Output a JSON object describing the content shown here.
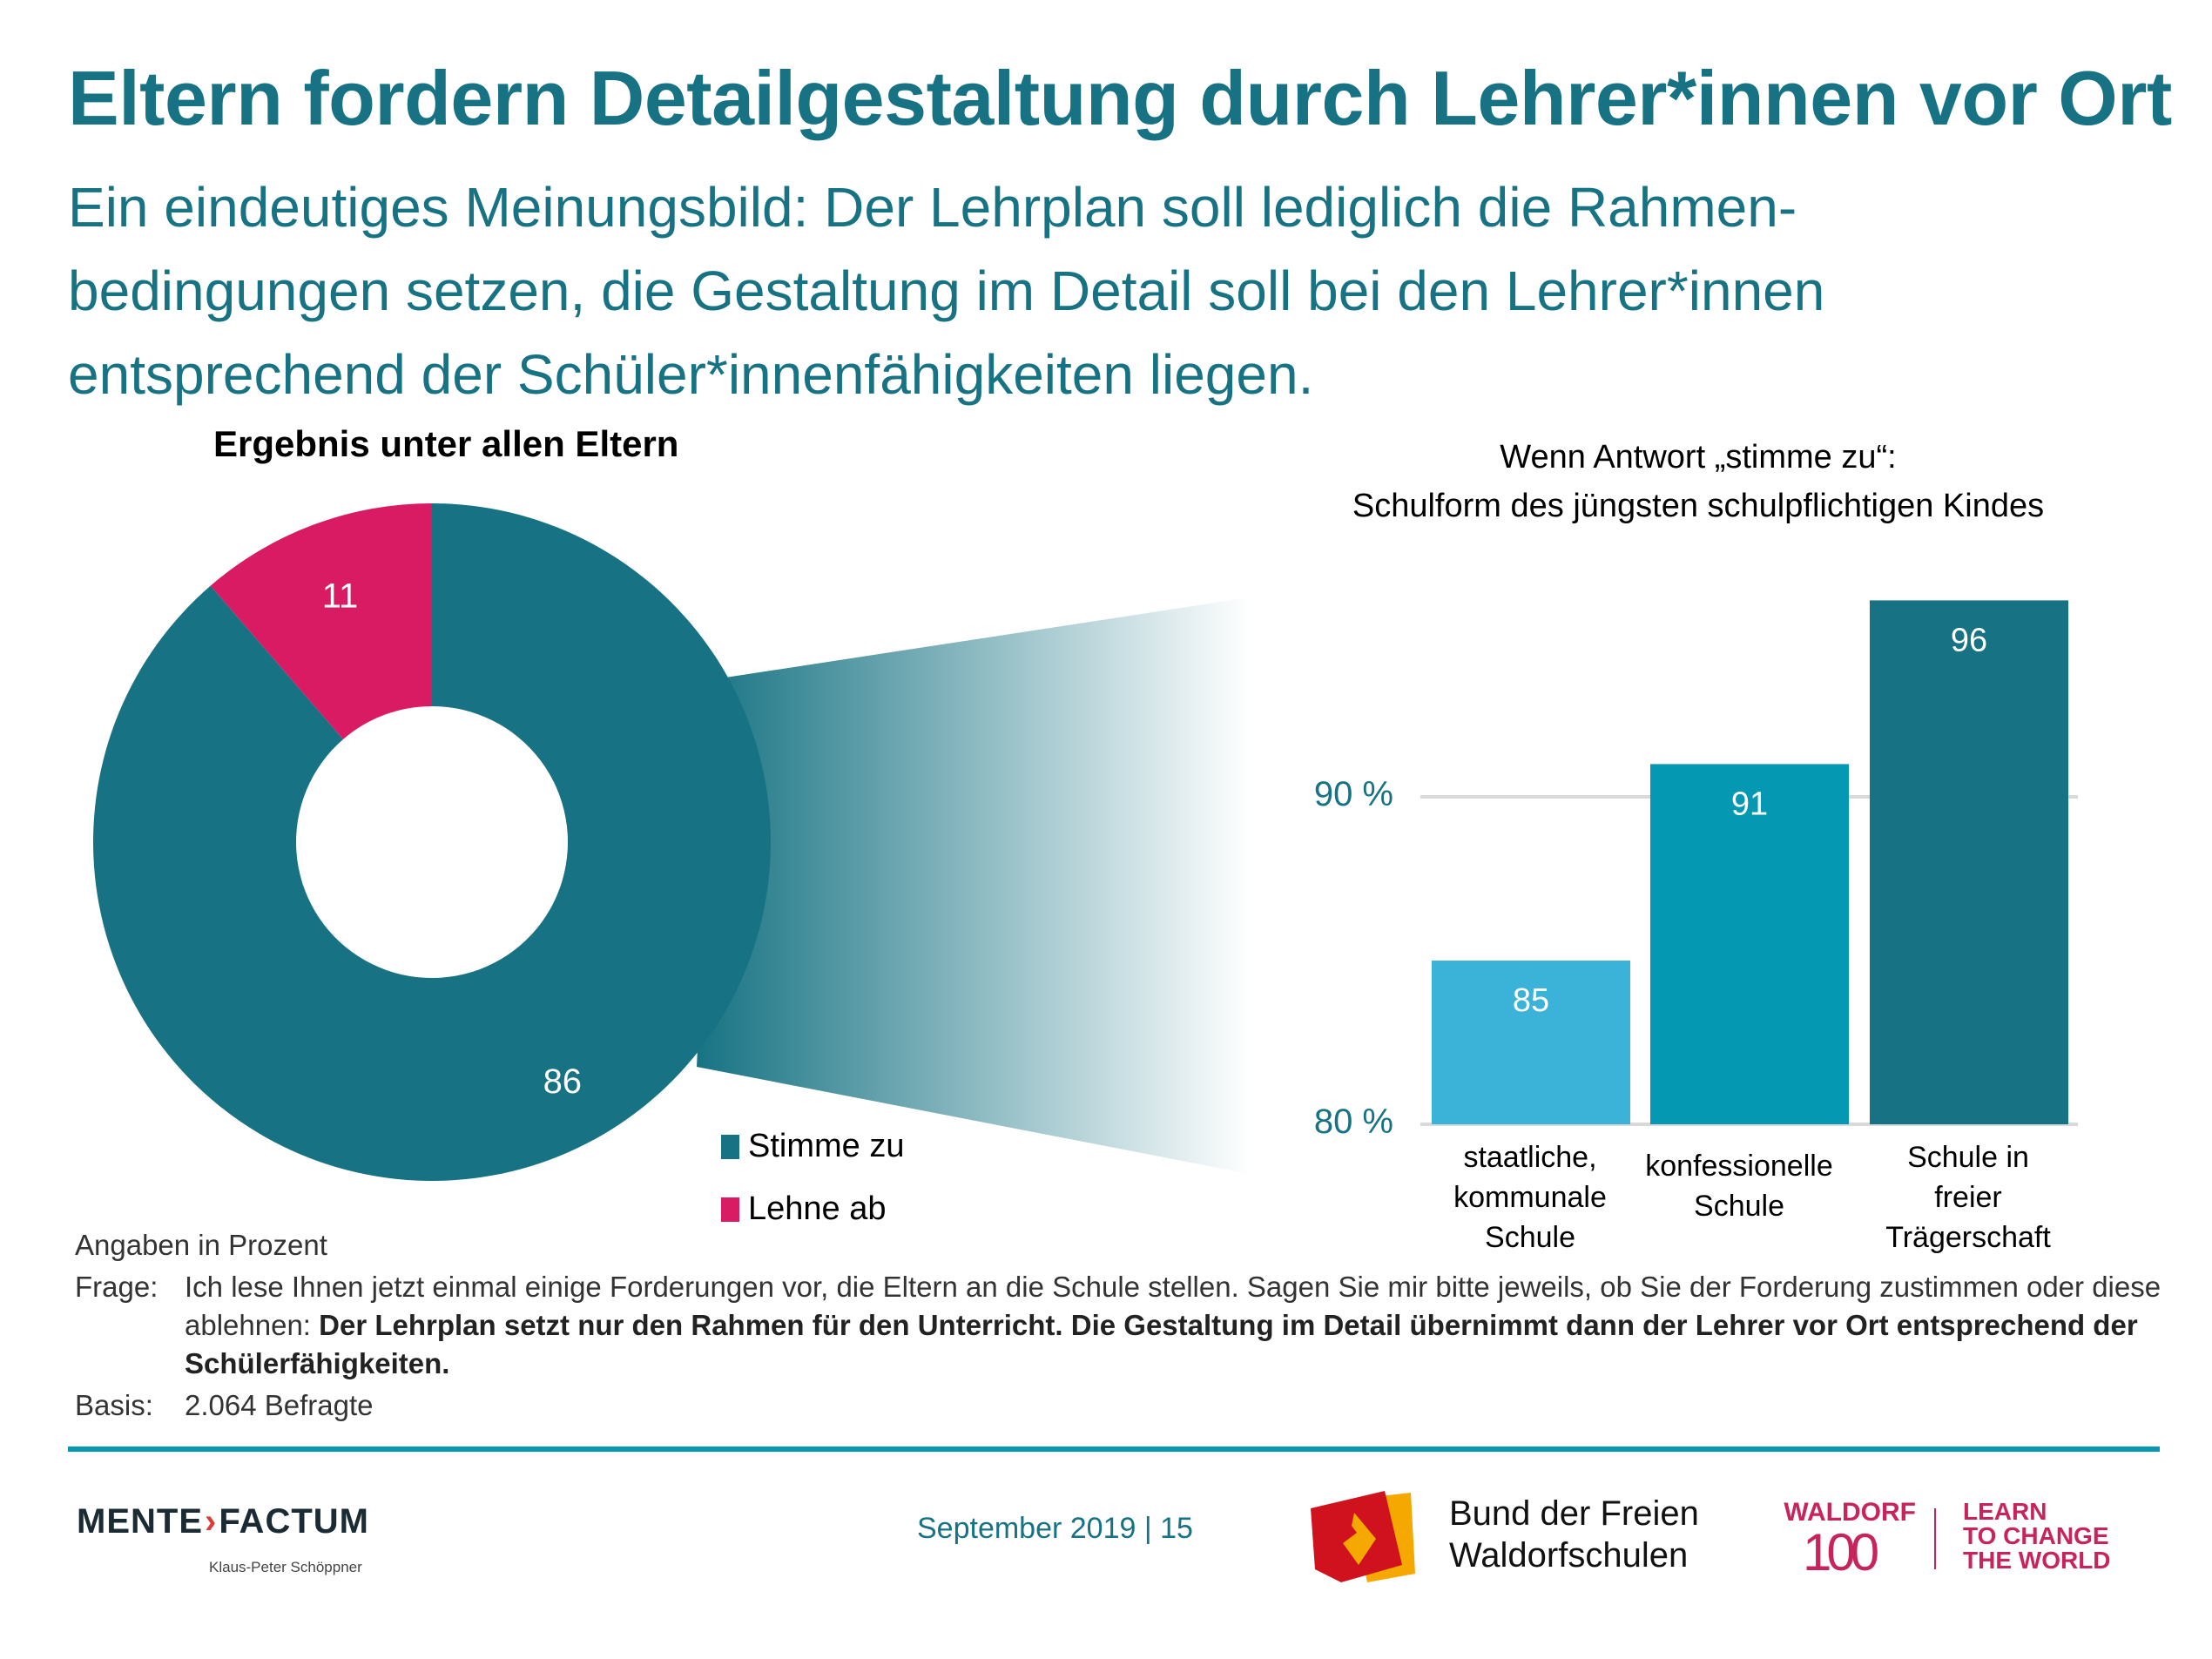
{
  "header": {
    "title": "Eltern fordern Detailgestaltung durch Lehrer*innen vor Ort",
    "subtitle_lines": [
      "Ein eindeutiges Meinungsbild: Der Lehrplan soll lediglich die Rahmen-",
      "bedingungen setzen, die Gestaltung im Detail soll bei den Lehrer*innen",
      "entsprechend der Schüler*innenfähigkeiten liegen."
    ]
  },
  "colors": {
    "brand_teal": "#177383",
    "reject_magenta": "#D81B63",
    "bar_light": "#3BB3D8",
    "bar_mid": "#0498B3",
    "bar_dark": "#177383",
    "rule": "#0898B2",
    "waldorf_pink": "#C8245C"
  },
  "chart_data": [
    {
      "type": "pie",
      "variant": "donut",
      "title": "Ergebnis unter allen Eltern",
      "categories": [
        "Stimme zu",
        "Lehne ab"
      ],
      "values": [
        86,
        11
      ],
      "colors": [
        "#177383",
        "#D81B63"
      ],
      "data_labels": [
        "86",
        "11"
      ],
      "legend": [
        "Stimme zu",
        "Lehne ab"
      ],
      "legend_position": "bottom-right"
    },
    {
      "type": "bar",
      "title": "Wenn Antwort „stimme zu“:",
      "subtitle": "Schulform des jüngsten schulpflichtigen Kindes",
      "categories": [
        "staatliche, kommunale Schule",
        "konfessionelle Schule",
        "Schule in freier Trägerschaft"
      ],
      "category_label_lines": [
        [
          "staatliche,",
          "kommunale",
          "Schule"
        ],
        [
          "konfessionelle",
          "Schule"
        ],
        [
          "Schule in",
          "freier",
          "Trägerschaft"
        ]
      ],
      "values": [
        85,
        91,
        96
      ],
      "data_labels": [
        "85",
        "91",
        "96"
      ],
      "colors": [
        "#3BB3D8",
        "#0498B3",
        "#177383"
      ],
      "ylim": [
        80,
        100
      ],
      "yticks": [
        80,
        90
      ],
      "ytick_labels": [
        "80 %",
        "90 %"
      ],
      "grid": true,
      "xlabel": "",
      "ylabel": ""
    }
  ],
  "notes": {
    "unit": "Angaben in Prozent",
    "question_label": "Frage:",
    "question_text": "Ich lese Ihnen jetzt einmal einige Forderungen vor, die Eltern an die Schule stellen. Sagen Sie mir bitte jeweils, ob Sie der Forderung zustimmen oder diese ablehnen: ",
    "question_bold": "Der Lehrplan setzt nur den Rahmen für den Unterricht. Die Gestaltung im Detail übernimmt dann der Lehrer vor Ort entsprechend der Schülerfähigkeiten.",
    "basis_label": "Basis:",
    "basis_text": "2.064 Befragte"
  },
  "footer": {
    "mf_logo_left": "MENTE",
    "mf_logo_arrow": "›",
    "mf_logo_right": "FACTUM",
    "mf_author": "Klaus-Peter Schöppner",
    "date_page": "September 2019 | 15",
    "bund_line1": "Bund der Freien",
    "bund_line2": "Waldorfschulen",
    "waldorf_word": "WALDORF",
    "waldorf_100": "100",
    "slogan_lines": [
      "LEARN",
      "TO CHANGE",
      "THE WORLD"
    ]
  }
}
